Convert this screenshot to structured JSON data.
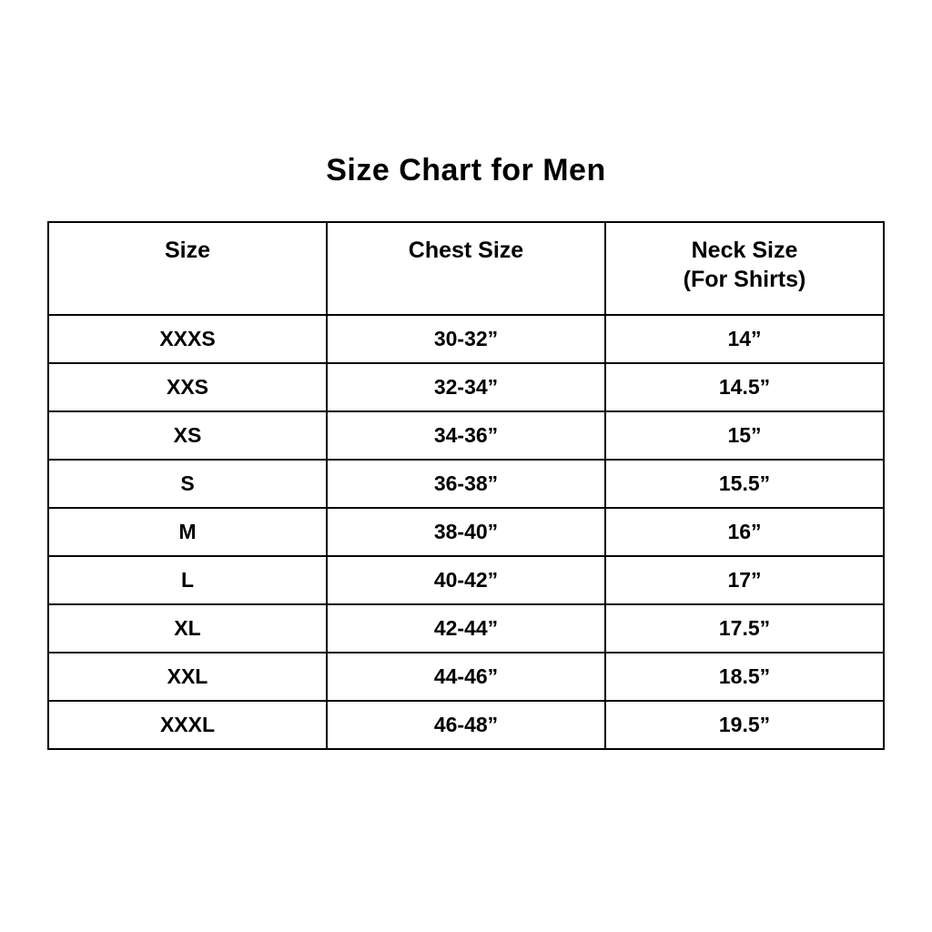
{
  "title": "Size Chart for Men",
  "table": {
    "headers": [
      {
        "label": "Size",
        "sublabel": ""
      },
      {
        "label": "Chest Size",
        "sublabel": ""
      },
      {
        "label": "Neck Size",
        "sublabel": "(For Shirts)"
      }
    ]
  },
  "chart_data": {
    "type": "table",
    "title": "Size Chart for Men",
    "columns": [
      "Size",
      "Chest Size",
      "Neck Size (For Shirts)"
    ],
    "rows": [
      [
        "XXXS",
        "30-32”",
        "14”"
      ],
      [
        "XXS",
        "32-34”",
        "14.5”"
      ],
      [
        "XS",
        "34-36”",
        "15”"
      ],
      [
        "S",
        "36-38”",
        "15.5”"
      ],
      [
        "M",
        "38-40”",
        "16”"
      ],
      [
        "L",
        "40-42”",
        "17”"
      ],
      [
        "XL",
        "42-44”",
        "17.5”"
      ],
      [
        "XXL",
        "44-46”",
        "18.5”"
      ],
      [
        "XXXL",
        "46-48”",
        "19.5”"
      ]
    ]
  }
}
